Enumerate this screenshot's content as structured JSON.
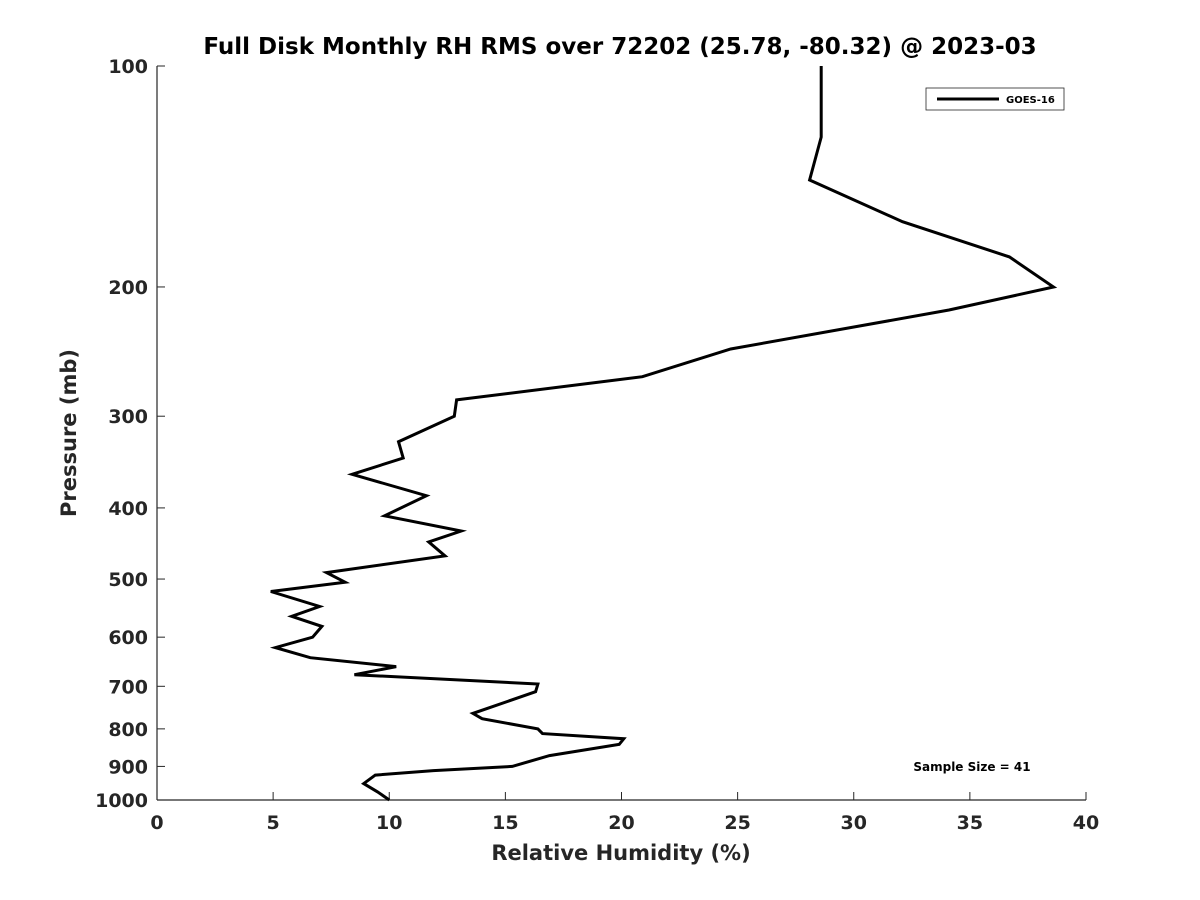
{
  "chart_data": {
    "type": "line",
    "title": "Full Disk Monthly RH RMS over 72202 (25.78, -80.32) @ 2023-03",
    "xlabel": "Relative Humidity (%)",
    "ylabel": "Pressure (mb)",
    "xlim": [
      0,
      40
    ],
    "ylim": [
      100,
      1000
    ],
    "y_scale": "log",
    "y_reversed": true,
    "xticks": [
      "0",
      "5",
      "10",
      "15",
      "20",
      "25",
      "30",
      "35",
      "40"
    ],
    "yticks": [
      "100",
      "200",
      "300",
      "400",
      "500",
      "600",
      "700",
      "800",
      "900",
      "1000"
    ],
    "grid": false,
    "legend_position": "top-right",
    "series": [
      {
        "name": "GOES-16",
        "color": "#000000",
        "x": [
          10.0,
          9.5,
          8.9,
          9.4,
          11.9,
          15.3,
          16.9,
          19.9,
          20.1,
          16.6,
          16.4,
          14.0,
          13.6,
          16.3,
          16.4,
          8.5,
          10.3,
          6.6,
          5.1,
          6.7,
          7.1,
          5.8,
          7.0,
          4.9,
          8.1,
          7.3,
          12.4,
          11.7,
          13.1,
          9.8,
          11.6,
          8.4,
          10.6,
          10.4,
          12.8,
          12.9,
          20.9,
          24.7,
          34.1,
          38.6,
          36.7,
          32.1,
          28.1,
          28.6,
          28.6
        ],
        "y": [
          1000,
          975,
          950,
          925,
          912,
          900,
          870,
          840,
          825,
          812,
          800,
          775,
          762,
          712,
          695,
          675,
          658,
          640,
          620,
          600,
          580,
          562,
          545,
          520,
          505,
          490,
          465,
          445,
          430,
          410,
          385,
          360,
          342,
          325,
          300,
          285,
          265,
          243,
          215,
          200,
          182,
          163,
          143,
          125,
          100
        ]
      }
    ]
  },
  "annotation": "Sample Size = 41"
}
